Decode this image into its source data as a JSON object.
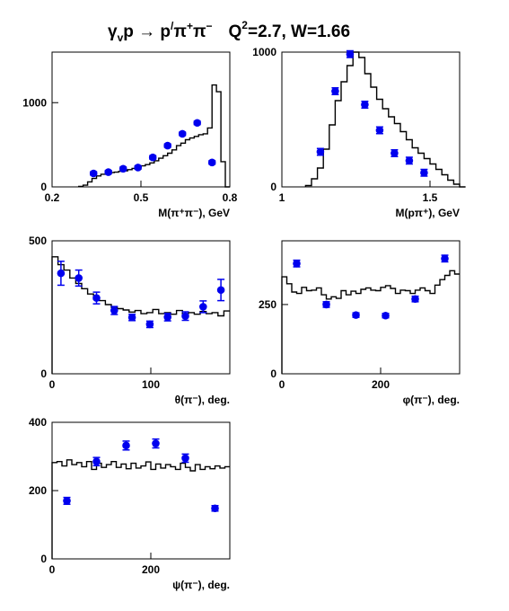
{
  "title": {
    "reaction_left": "γ",
    "reaction_sub": "v",
    "reaction_mid": "p → p",
    "reaction_prime": "/",
    "reaction_pi": "π",
    "reaction_sup_plus": "+",
    "reaction_pi2": "π",
    "reaction_sup_minus": "−",
    "q_label": "Q",
    "q_sup": "2",
    "q_value": "=2.7, W=1.66"
  },
  "colors": {
    "data_points": "#0000ee",
    "histogram": "#000000",
    "axes": "#000000"
  },
  "chart_data": [
    {
      "type": "scatter",
      "id": "m-pipi",
      "xlabel": "M(π⁺π⁻), GeV",
      "xlim": [
        0.2,
        0.8
      ],
      "ylim": [
        0,
        1600
      ],
      "xticks": [
        0.2,
        0.5,
        0.8
      ],
      "xtick_labels": [
        "0.2",
        "0.5",
        "0.8"
      ],
      "yticks": [
        0,
        1000
      ],
      "ytick_labels": [
        "0",
        "1000"
      ],
      "points": [
        {
          "x": 0.34,
          "y": 160,
          "err": 20
        },
        {
          "x": 0.39,
          "y": 175,
          "err": 20
        },
        {
          "x": 0.44,
          "y": 215,
          "err": 20
        },
        {
          "x": 0.49,
          "y": 230,
          "err": 20
        },
        {
          "x": 0.54,
          "y": 350,
          "err": 20
        },
        {
          "x": 0.59,
          "y": 490,
          "err": 20
        },
        {
          "x": 0.64,
          "y": 630,
          "err": 20
        },
        {
          "x": 0.69,
          "y": 760,
          "err": 20
        },
        {
          "x": 0.74,
          "y": 290,
          "err": 20
        }
      ],
      "histogram": {
        "x0": 0.29,
        "dx": 0.015,
        "values": [
          5,
          20,
          60,
          100,
          130,
          150,
          160,
          170,
          175,
          185,
          190,
          205,
          220,
          235,
          250,
          265,
          285,
          310,
          340,
          370,
          400,
          440,
          490,
          520,
          560,
          580,
          600,
          620,
          630,
          700,
          1210,
          1130,
          300,
          0
        ]
      }
    },
    {
      "type": "scatter",
      "id": "m-ppiplus",
      "xlabel": "M(pπ⁺), GeV",
      "xlim": [
        1.0,
        1.6
      ],
      "ylim": [
        0,
        1000
      ],
      "xticks": [
        1.0,
        1.5
      ],
      "xtick_labels": [
        "1",
        "1.5"
      ],
      "yticks": [
        0,
        1000
      ],
      "ytick_labels": [
        "0",
        "1000"
      ],
      "points": [
        {
          "x": 1.13,
          "y": 260,
          "err": 25
        },
        {
          "x": 1.18,
          "y": 710,
          "err": 25
        },
        {
          "x": 1.23,
          "y": 985,
          "err": 25
        },
        {
          "x": 1.28,
          "y": 610,
          "err": 25
        },
        {
          "x": 1.33,
          "y": 420,
          "err": 25
        },
        {
          "x": 1.38,
          "y": 250,
          "err": 25
        },
        {
          "x": 1.43,
          "y": 195,
          "err": 25
        },
        {
          "x": 1.48,
          "y": 105,
          "err": 25
        }
      ],
      "histogram": {
        "x0": 1.08,
        "dx": 0.02,
        "values": [
          10,
          60,
          140,
          280,
          460,
          640,
          780,
          900,
          1000,
          960,
          840,
          740,
          650,
          580,
          520,
          470,
          410,
          350,
          290,
          250,
          210,
          170,
          130,
          90,
          50,
          20,
          0
        ]
      }
    },
    {
      "type": "scatter",
      "id": "theta-pim",
      "xlabel": "θ(π⁻), deg.",
      "xlim": [
        0,
        180
      ],
      "ylim": [
        0,
        500
      ],
      "xticks": [
        0,
        100
      ],
      "xtick_labels": [
        "0",
        "100"
      ],
      "yticks": [
        0,
        500
      ],
      "ytick_labels": [
        "0",
        "500"
      ],
      "points": [
        {
          "x": 9,
          "y": 378,
          "err": 45
        },
        {
          "x": 27,
          "y": 360,
          "err": 30
        },
        {
          "x": 45,
          "y": 285,
          "err": 22
        },
        {
          "x": 63,
          "y": 238,
          "err": 15
        },
        {
          "x": 81,
          "y": 212,
          "err": 12
        },
        {
          "x": 99,
          "y": 186,
          "err": 12
        },
        {
          "x": 117,
          "y": 213,
          "err": 14
        },
        {
          "x": 135,
          "y": 217,
          "err": 16
        },
        {
          "x": 153,
          "y": 252,
          "err": 22
        },
        {
          "x": 171,
          "y": 315,
          "err": 40
        }
      ],
      "histogram": {
        "x0": 0,
        "dx": 6,
        "values": [
          440,
          410,
          390,
          360,
          340,
          320,
          300,
          280,
          275,
          260,
          250,
          245,
          240,
          232,
          238,
          226,
          230,
          242,
          226,
          230,
          224,
          238,
          220,
          230,
          224,
          234,
          226,
          230,
          218,
          236
        ]
      }
    },
    {
      "type": "scatter",
      "id": "phi-pim",
      "xlabel": "φ(π⁻), deg.",
      "xlim": [
        0,
        360
      ],
      "ylim": [
        0,
        480
      ],
      "xticks": [
        0,
        200
      ],
      "xtick_labels": [
        "0",
        "200"
      ],
      "yticks": [
        0,
        250
      ],
      "ytick_labels": [
        "0",
        "250"
      ],
      "points": [
        {
          "x": 30,
          "y": 398,
          "err": 12
        },
        {
          "x": 90,
          "y": 250,
          "err": 10
        },
        {
          "x": 150,
          "y": 212,
          "err": 8
        },
        {
          "x": 210,
          "y": 210,
          "err": 8
        },
        {
          "x": 270,
          "y": 270,
          "err": 10
        },
        {
          "x": 330,
          "y": 416,
          "err": 12
        }
      ],
      "histogram": {
        "x0": 0,
        "dx": 10,
        "values": [
          350,
          325,
          295,
          290,
          312,
          300,
          302,
          310,
          285,
          270,
          278,
          272,
          300,
          285,
          298,
          290,
          305,
          310,
          302,
          300,
          312,
          318,
          308,
          290,
          302,
          300,
          290,
          302,
          310,
          300,
          290,
          320,
          340,
          355,
          372,
          360
        ]
      }
    },
    {
      "type": "scatter",
      "id": "psi-pim",
      "xlabel": "ψ(π⁻), deg.",
      "xlim": [
        0,
        360
      ],
      "ylim": [
        0,
        400
      ],
      "xticks": [
        0,
        200
      ],
      "xtick_labels": [
        "0",
        "200"
      ],
      "yticks": [
        0,
        200,
        400
      ],
      "ytick_labels": [
        "0",
        "200",
        "400"
      ],
      "points": [
        {
          "x": 30,
          "y": 170,
          "err": 10
        },
        {
          "x": 90,
          "y": 285,
          "err": 12
        },
        {
          "x": 150,
          "y": 332,
          "err": 13
        },
        {
          "x": 210,
          "y": 338,
          "err": 13
        },
        {
          "x": 270,
          "y": 295,
          "err": 12
        },
        {
          "x": 330,
          "y": 148,
          "err": 8
        }
      ],
      "histogram": {
        "x0": 0,
        "dx": 10,
        "values": [
          282,
          285,
          272,
          290,
          276,
          282,
          270,
          285,
          262,
          280,
          268,
          276,
          285,
          268,
          278,
          264,
          280,
          266,
          272,
          284,
          262,
          278,
          266,
          276,
          270,
          262,
          280,
          268,
          258,
          276,
          262,
          270,
          264,
          272,
          266,
          270
        ]
      }
    }
  ]
}
